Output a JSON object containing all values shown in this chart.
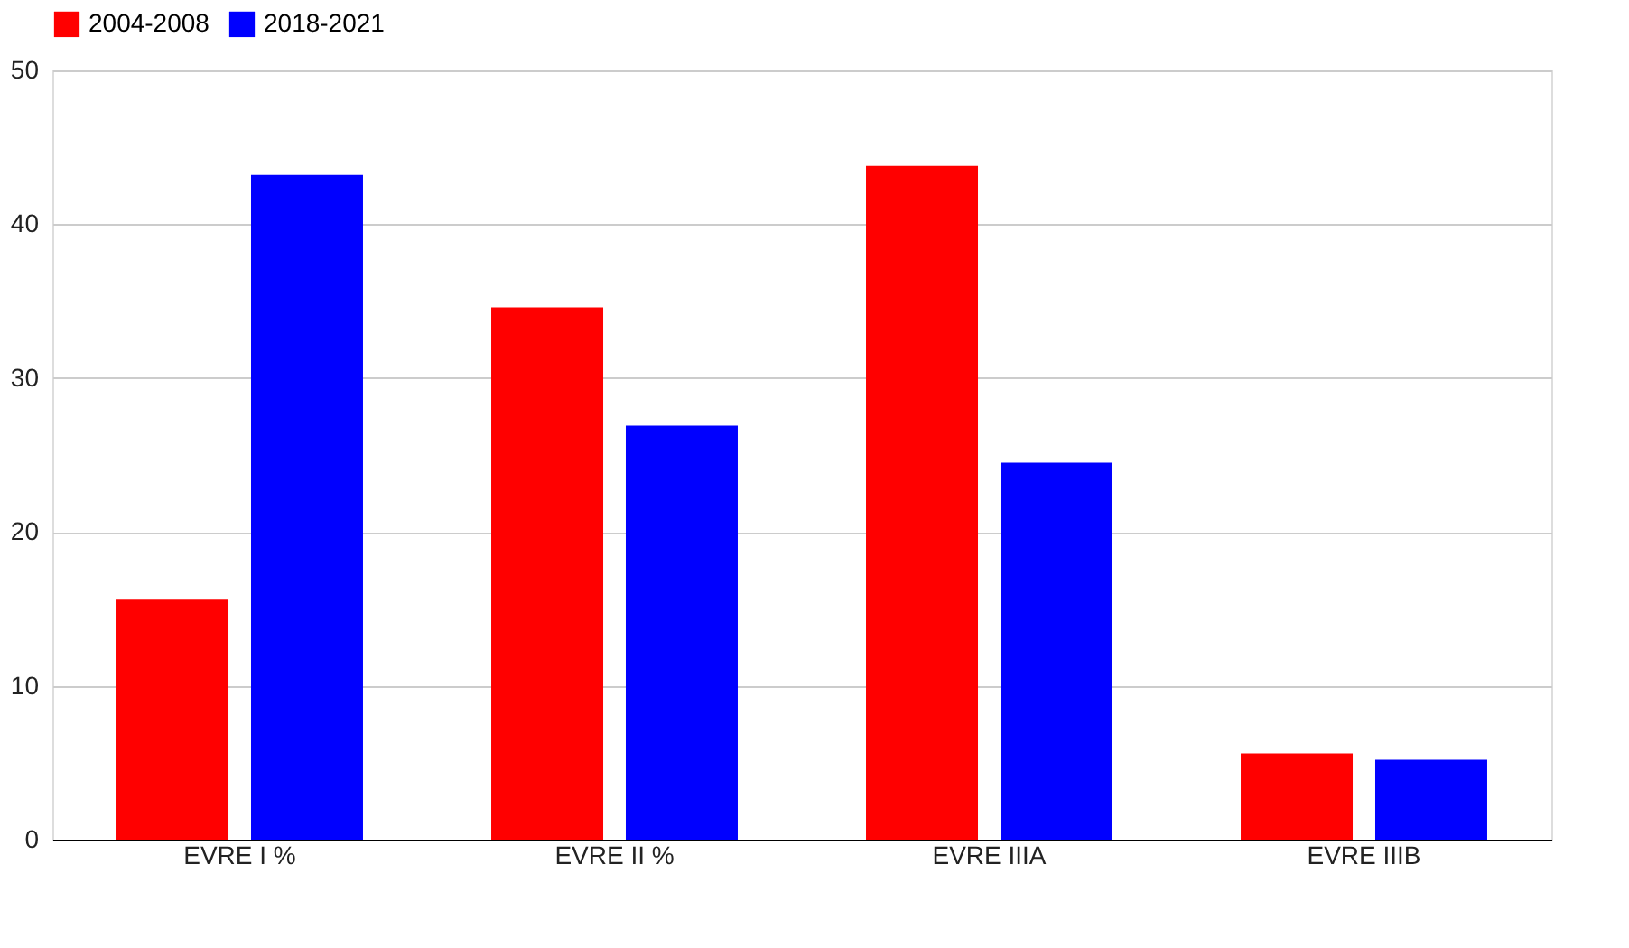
{
  "chart_data": {
    "type": "bar",
    "categories": [
      "EVRE I %",
      "EVRE II %",
      "EVRE IIIA",
      "EVRE IIIB"
    ],
    "series": [
      {
        "name": "2004-2008",
        "color": "#ff0000",
        "values": [
          15.6,
          34.6,
          43.8,
          5.6
        ]
      },
      {
        "name": "2018-2021",
        "color": "#0000ff",
        "values": [
          43.2,
          26.9,
          24.5,
          5.2
        ]
      }
    ],
    "ylim": [
      0,
      50
    ],
    "yticks": [
      0,
      10,
      20,
      30,
      40,
      50
    ],
    "grid": "y",
    "legend": "top"
  }
}
